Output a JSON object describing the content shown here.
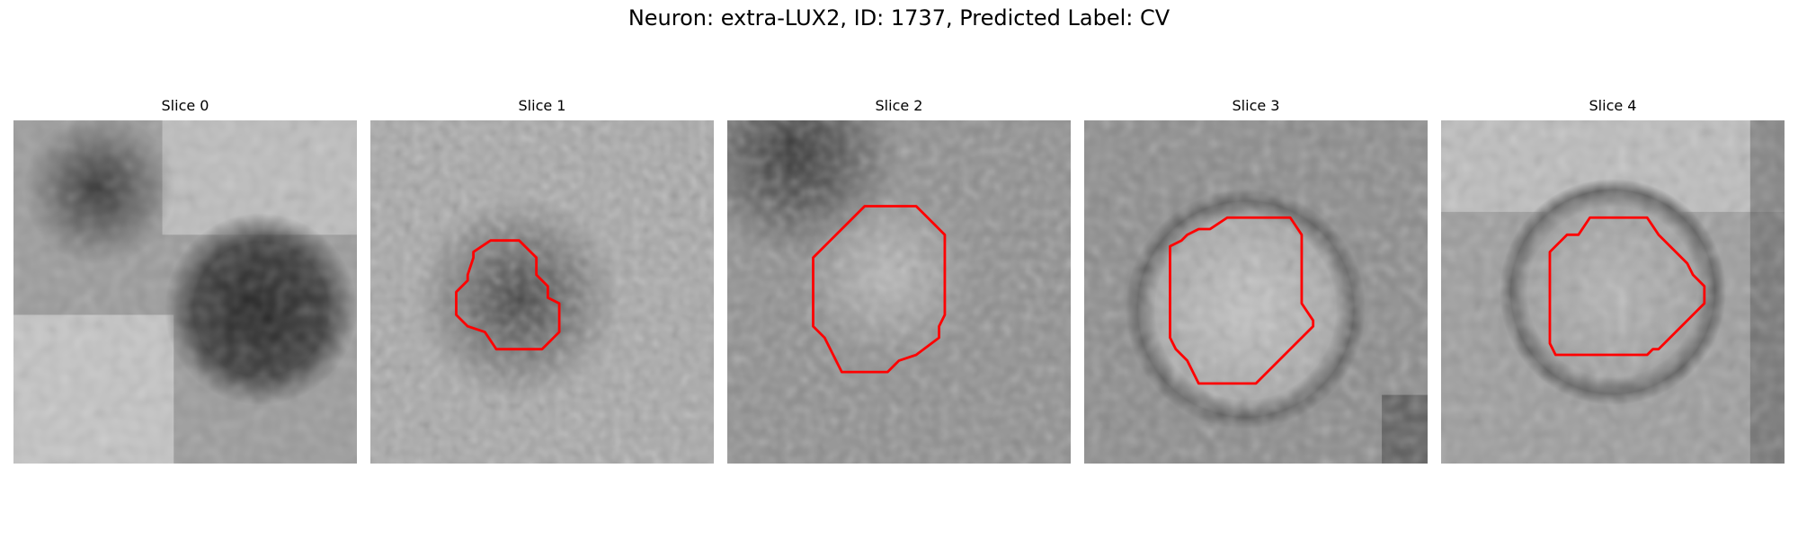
{
  "figure": {
    "title": "Neuron: extra-LUX2, ID: 1737, Predicted Label: CV"
  },
  "contour_color": "#ff0000",
  "panels": [
    {
      "title": "Slice 0",
      "has_contour": false
    },
    {
      "title": "Slice 1",
      "has_contour": true
    },
    {
      "title": "Slice 2",
      "has_contour": true
    },
    {
      "title": "Slice 3",
      "has_contour": true
    },
    {
      "title": "Slice 4",
      "has_contour": true
    }
  ]
}
